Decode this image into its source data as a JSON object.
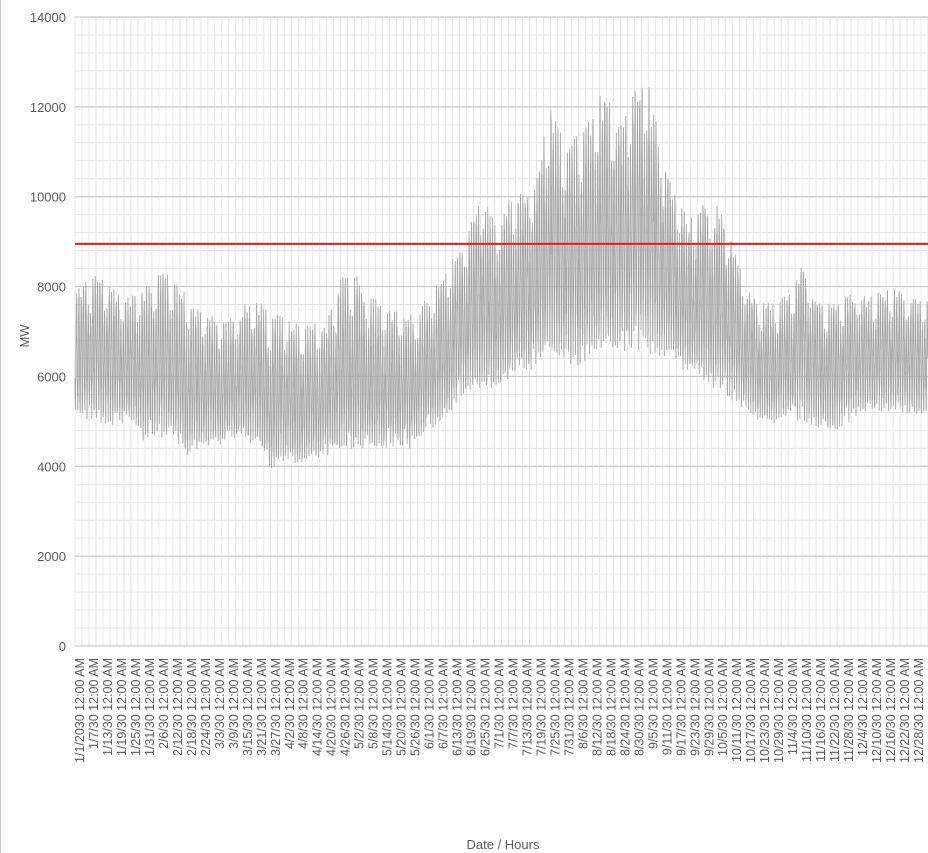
{
  "chart_data": {
    "type": "line",
    "title": "",
    "xlabel": "Date / Hours",
    "ylabel": "MW",
    "ylim": [
      0,
      14000
    ],
    "ytick_labels": [
      "0",
      "2000",
      "4000",
      "6000",
      "8000",
      "10000",
      "12000",
      "14000"
    ],
    "xtick_labels": [
      "1/1/2030 12:00 AM",
      "1/7/30 12:00 AM",
      "1/13/30 12:00 AM",
      "1/19/30 12:00 AM",
      "1/25/30 12:00 AM",
      "1/31/30 12:00 AM",
      "2/6/30 12:00 AM",
      "2/12/30 12:00 AM",
      "2/18/30 12:00 AM",
      "2/24/30 12:00 AM",
      "3/3/30 12:00 AM",
      "3/9/30 12:00 AM",
      "3/15/30 12:00 AM",
      "3/21/30 12:00 AM",
      "3/27/30 12:00 AM",
      "4/2/30 12:00 AM",
      "4/8/30 12:00 AM",
      "4/14/30 12:00 AM",
      "4/20/30 12:00 AM",
      "4/26/30 12:00 AM",
      "5/2/30 12:00 AM",
      "5/8/30 12:00 AM",
      "5/14/30 12:00 AM",
      "5/20/30 12:00 AM",
      "5/26/30 12:00 AM",
      "6/1/30 12:00 AM",
      "6/7/30 12:00 AM",
      "6/13/30 12:00 AM",
      "6/19/30 12:00 AM",
      "6/25/30 12:00 AM",
      "7/1/30 12:00 AM",
      "7/7/30 12:00 AM",
      "7/13/30 12:00 AM",
      "7/19/30 12:00 AM",
      "7/25/30 12:00 AM",
      "7/31/30 12:00 AM",
      "8/6/30 12:00 AM",
      "8/12/30 12:00 AM",
      "8/18/30 12:00 AM",
      "8/24/30 12:00 AM",
      "8/30/30 12:00 AM",
      "9/5/30 12:00 AM",
      "9/11/30 12:00 AM",
      "9/17/30 12:00 AM",
      "9/23/30 12:00 AM",
      "9/29/30 12:00 AM",
      "10/5/30 12:00 AM",
      "10/11/30 12:00 AM",
      "10/17/30 12:00 AM",
      "10/23/30 12:00 AM",
      "10/29/30 12:00 AM",
      "11/4/30 12:00 AM",
      "11/10/30 12:00 AM",
      "11/16/30 12:00 AM",
      "11/22/30 12:00 AM",
      "11/28/30 12:00 AM",
      "12/4/30 12:00 AM",
      "12/10/30 12:00 AM",
      "12/16/30 12:00 AM",
      "12/22/30 12:00 AM",
      "12/28/30 12:00 AM"
    ],
    "grid": true,
    "legend": "none",
    "series": [
      {
        "color": "#a6a6a6",
        "description_samples": [
          [
            "1/1/2030",
            4800,
            8000
          ],
          [
            "1/7/30",
            4800,
            8400
          ],
          [
            "1/13/30",
            4700,
            8300
          ],
          [
            "1/19/30",
            4700,
            8000
          ],
          [
            "1/25/30",
            4700,
            7800
          ],
          [
            "1/31/30",
            4300,
            8100
          ],
          [
            "2/6/30",
            4400,
            8500
          ],
          [
            "2/12/30",
            4300,
            8300
          ],
          [
            "2/18/30",
            3900,
            7900
          ],
          [
            "2/24/30",
            4200,
            7600
          ],
          [
            "3/3/30",
            4200,
            7400
          ],
          [
            "3/9/30",
            4400,
            7300
          ],
          [
            "3/15/30",
            4300,
            7700
          ],
          [
            "3/21/30",
            4300,
            7800
          ],
          [
            "3/27/30",
            3600,
            7500
          ],
          [
            "4/2/30",
            3900,
            7400
          ],
          [
            "4/8/30",
            3800,
            7200
          ],
          [
            "4/14/30",
            3900,
            7200
          ],
          [
            "4/20/30",
            4000,
            7300
          ],
          [
            "4/26/30",
            4000,
            8300
          ],
          [
            "5/2/30",
            4100,
            8400
          ],
          [
            "5/8/30",
            4100,
            7900
          ],
          [
            "5/14/30",
            4100,
            7700
          ],
          [
            "5/20/30",
            4200,
            7600
          ],
          [
            "5/26/30",
            4200,
            7400
          ],
          [
            "6/1/30",
            4500,
            7700
          ],
          [
            "6/7/30",
            4700,
            8200
          ],
          [
            "6/13/30",
            5000,
            8700
          ],
          [
            "6/19/30",
            5400,
            9200
          ],
          [
            "6/25/30",
            5400,
            10300
          ],
          [
            "7/1/30",
            5500,
            9500
          ],
          [
            "7/7/30",
            5600,
            10000
          ],
          [
            "7/13/30",
            5700,
            10200
          ],
          [
            "7/19/30",
            5900,
            10500
          ],
          [
            "7/25/30",
            6000,
            12200
          ],
          [
            "7/31/30",
            6000,
            11300
          ],
          [
            "8/6/30",
            5800,
            11500
          ],
          [
            "8/12/30",
            6000,
            12000
          ],
          [
            "8/18/30",
            6100,
            12600
          ],
          [
            "8/24/30",
            6100,
            11800
          ],
          [
            "8/30/30",
            6100,
            12500
          ],
          [
            "9/5/30",
            6100,
            12600
          ],
          [
            "9/11/30",
            6100,
            11200
          ],
          [
            "9/17/30",
            6000,
            10000
          ],
          [
            "9/23/30",
            5700,
            9600
          ],
          [
            "9/29/30",
            5500,
            10000
          ],
          [
            "10/5/30",
            5400,
            9900
          ],
          [
            "10/11/30",
            5200,
            9200
          ],
          [
            "10/17/30",
            5000,
            8100
          ],
          [
            "10/23/30",
            4800,
            7700
          ],
          [
            "10/29/30",
            4700,
            7700
          ],
          [
            "11/4/30",
            4800,
            7900
          ],
          [
            "11/10/30",
            4800,
            8600
          ],
          [
            "11/16/30",
            4600,
            7800
          ],
          [
            "11/22/30",
            4500,
            7700
          ],
          [
            "11/28/30",
            4700,
            7900
          ],
          [
            "12/4/30",
            4900,
            7900
          ],
          [
            "12/10/30",
            5000,
            7800
          ],
          [
            "12/16/30",
            5000,
            8000
          ],
          [
            "12/22/30",
            5000,
            8000
          ],
          [
            "12/28/30",
            4900,
            7800
          ]
        ]
      }
    ],
    "reference_line": {
      "value": 8950,
      "color": "#e41a1c"
    }
  }
}
